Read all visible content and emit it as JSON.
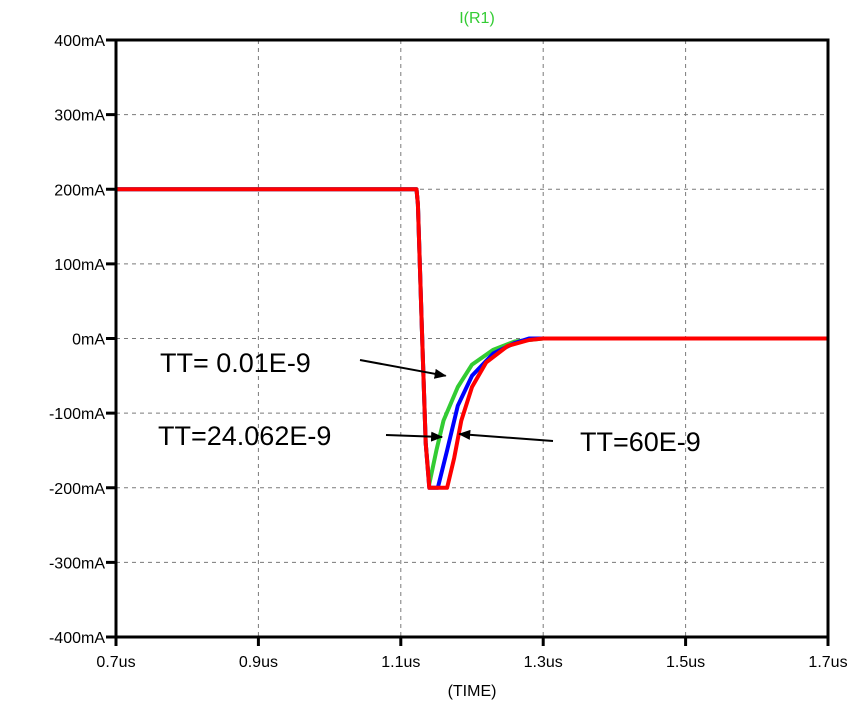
{
  "chart_data": {
    "type": "line",
    "title": "I(R1)",
    "title_color": "#33cc33",
    "xlabel": "(TIME)",
    "ylabel": "",
    "xlim": [
      0.7,
      1.7
    ],
    "ylim": [
      -400,
      400
    ],
    "x_unit": "us",
    "y_unit": "mA",
    "grid": true,
    "x_ticks": [
      0.7,
      0.9,
      1.1,
      1.3,
      1.5,
      1.7
    ],
    "x_tick_labels": [
      "0.7us",
      "0.9us",
      "1.1us",
      "1.3us",
      "1.5us",
      "1.7us"
    ],
    "y_ticks": [
      400,
      300,
      200,
      100,
      0,
      -100,
      -200,
      -300,
      -400
    ],
    "y_tick_labels": [
      "400mA",
      "300mA",
      "200mA",
      "100mA",
      "0mA",
      "-100mA",
      "-200mA",
      "-300mA",
      "-400mA"
    ],
    "series": [
      {
        "color": "#33cc33",
        "x": [
          0.7,
          1.122,
          1.124,
          1.13,
          1.135,
          1.14,
          1.15,
          1.16,
          1.18,
          1.2,
          1.23,
          1.26,
          1.3,
          1.7
        ],
        "y": [
          200,
          200,
          180,
          0,
          -140,
          -195,
          -150,
          -110,
          -65,
          -35,
          -15,
          -4,
          0,
          0
        ]
      },
      {
        "color": "#0000ff",
        "x": [
          0.7,
          1.122,
          1.124,
          1.13,
          1.135,
          1.14,
          1.152,
          1.165,
          1.18,
          1.2,
          1.23,
          1.26,
          1.28,
          1.7
        ],
        "y": [
          200,
          200,
          180,
          0,
          -140,
          -200,
          -200,
          -150,
          -90,
          -50,
          -20,
          -6,
          0,
          0
        ]
      },
      {
        "color": "#ff0000",
        "x": [
          0.7,
          1.122,
          1.124,
          1.13,
          1.135,
          1.14,
          1.165,
          1.175,
          1.185,
          1.2,
          1.22,
          1.25,
          1.28,
          1.3,
          1.7
        ],
        "y": [
          200,
          200,
          180,
          0,
          -140,
          -200,
          -200,
          -160,
          -110,
          -65,
          -32,
          -10,
          -2,
          0,
          0
        ]
      }
    ],
    "annotations": [
      {
        "text": "TT= 0.01E-9",
        "points_to_x": 1.163,
        "points_to_y": -50
      },
      {
        "text": "TT=24.062E-9",
        "points_to_x": 1.158,
        "points_to_y": -132
      },
      {
        "text": "TT=60E-9",
        "points_to_x": 1.182,
        "points_to_y": -128
      }
    ]
  }
}
